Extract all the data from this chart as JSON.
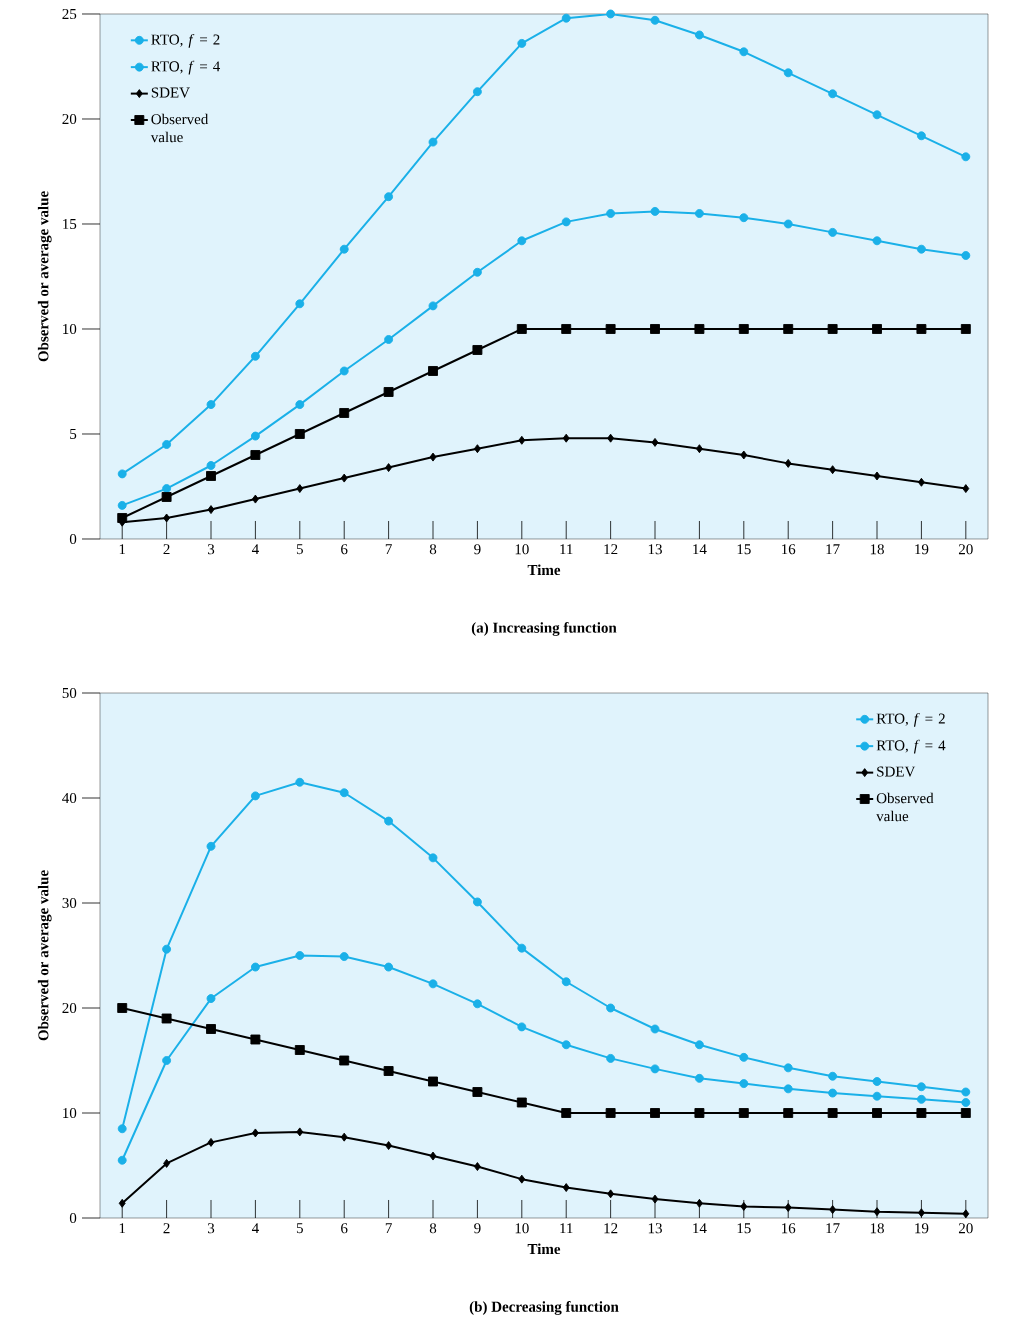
{
  "chart_data": [
    {
      "type": "line",
      "title": "(a) Increasing function",
      "xlabel": "Time",
      "ylabel": "Observed or average value",
      "x": [
        1,
        2,
        3,
        4,
        5,
        6,
        7,
        8,
        9,
        10,
        11,
        12,
        13,
        14,
        15,
        16,
        17,
        18,
        19,
        20
      ],
      "xlim": [
        0.5,
        20.5
      ],
      "xticks": [
        1,
        2,
        3,
        4,
        5,
        6,
        7,
        8,
        9,
        10,
        11,
        12,
        13,
        14,
        15,
        16,
        17,
        18,
        19,
        20
      ],
      "ylim": [
        0,
        25
      ],
      "yticks": [
        0,
        5,
        10,
        15,
        20,
        25
      ],
      "grid": false,
      "legend": "top left",
      "line_style": "solid",
      "series": [
        {
          "name": "RTO, *f* = 2",
          "color": "#1ab0e8",
          "marker": "circle",
          "values": [
            1.6,
            2.4,
            3.5,
            4.9,
            6.4,
            8.0,
            9.5,
            11.1,
            12.7,
            14.2,
            15.1,
            15.5,
            15.6,
            15.5,
            15.3,
            15.0,
            14.6,
            14.2,
            13.8,
            13.5
          ]
        },
        {
          "name": "RTO, *f* = 4",
          "color": "#1ab0e8",
          "marker": "circle",
          "values": [
            3.1,
            4.5,
            6.4,
            8.7,
            11.2,
            13.8,
            16.3,
            18.9,
            21.3,
            23.6,
            24.8,
            25.0,
            24.7,
            24.0,
            23.2,
            22.2,
            21.2,
            20.2,
            19.2,
            18.2
          ]
        },
        {
          "name": "SDEV",
          "color": "#000000",
          "marker": "diamond",
          "values": [
            0.8,
            1.0,
            1.4,
            1.9,
            2.4,
            2.9,
            3.4,
            3.9,
            4.3,
            4.7,
            4.8,
            4.8,
            4.6,
            4.3,
            4.0,
            3.6,
            3.3,
            3.0,
            2.7,
            2.4
          ]
        },
        {
          "name": "Observed value",
          "color": "#000000",
          "marker": "square",
          "values": [
            1,
            2,
            3,
            4,
            5,
            6,
            7,
            8,
            9,
            10,
            10,
            10,
            10,
            10,
            10,
            10,
            10,
            10,
            10,
            10
          ]
        }
      ]
    },
    {
      "type": "line",
      "title": "(b) Decreasing function",
      "xlabel": "Time",
      "ylabel": "Observed or average value",
      "x": [
        1,
        2,
        3,
        4,
        5,
        6,
        7,
        8,
        9,
        10,
        11,
        12,
        13,
        14,
        15,
        16,
        17,
        18,
        19,
        20
      ],
      "xlim": [
        0.5,
        20.5
      ],
      "xticks": [
        1,
        2,
        3,
        4,
        5,
        6,
        7,
        8,
        9,
        10,
        11,
        12,
        13,
        14,
        15,
        16,
        17,
        18,
        19,
        20
      ],
      "ylim": [
        0,
        50
      ],
      "yticks": [
        0,
        10,
        20,
        30,
        40,
        50
      ],
      "grid": false,
      "legend": "top right",
      "line_style": "solid",
      "series": [
        {
          "name": "RTO, *f* = 2",
          "color": "#1ab0e8",
          "marker": "circle",
          "values": [
            5.5,
            15.0,
            20.9,
            23.9,
            25.0,
            24.9,
            23.9,
            22.3,
            20.4,
            18.2,
            16.5,
            15.2,
            14.2,
            13.3,
            12.8,
            12.3,
            11.9,
            11.6,
            11.3,
            11.0
          ]
        },
        {
          "name": "RTO, *f* = 4",
          "color": "#1ab0e8",
          "marker": "circle",
          "values": [
            8.5,
            25.6,
            35.4,
            40.2,
            41.5,
            40.5,
            37.8,
            34.3,
            30.1,
            25.7,
            22.5,
            20.0,
            18.0,
            16.5,
            15.3,
            14.3,
            13.5,
            13.0,
            12.5,
            12.0
          ]
        },
        {
          "name": "SDEV",
          "color": "#000000",
          "marker": "diamond",
          "values": [
            1.4,
            5.2,
            7.2,
            8.1,
            8.2,
            7.7,
            6.9,
            5.9,
            4.9,
            3.7,
            2.9,
            2.3,
            1.8,
            1.4,
            1.1,
            1.0,
            0.8,
            0.6,
            0.5,
            0.4
          ]
        },
        {
          "name": "Observed value",
          "color": "#000000",
          "marker": "square",
          "values": [
            20,
            19,
            18,
            17,
            16,
            15,
            14,
            13,
            12,
            11,
            10,
            10,
            10,
            10,
            10,
            10,
            10,
            10,
            10,
            10
          ]
        }
      ]
    }
  ]
}
